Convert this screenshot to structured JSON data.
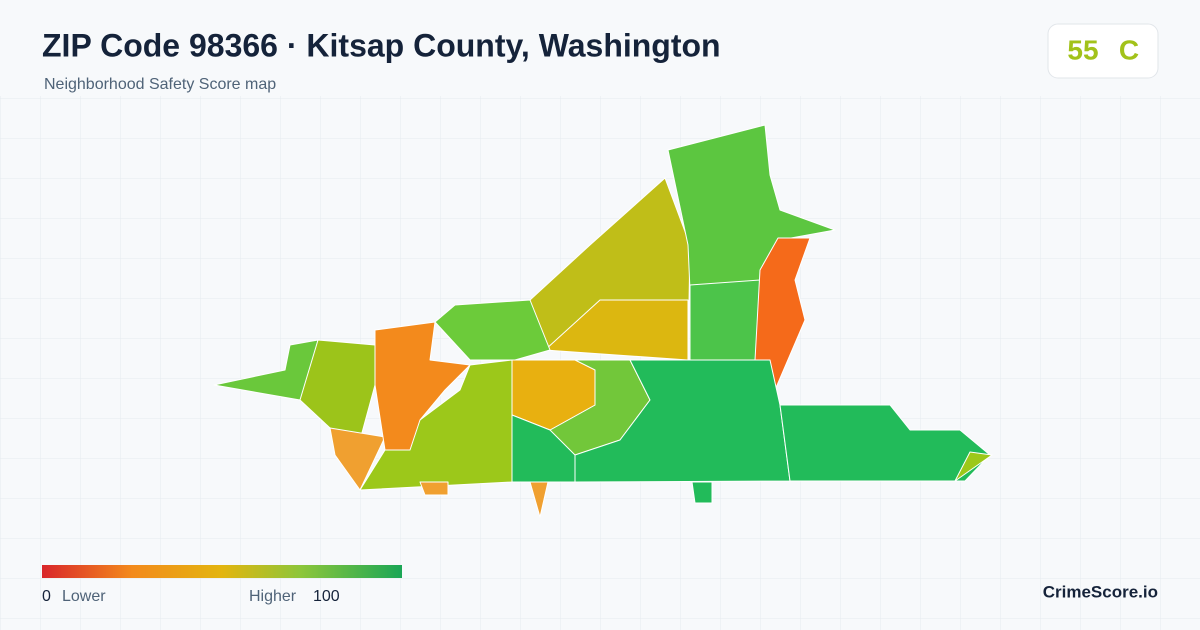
{
  "header": {
    "title": "ZIP Code 98366 · Kitsap County, Washington",
    "subtitle": "Neighborhood Safety Score map"
  },
  "score": {
    "value": "55",
    "grade": "C"
  },
  "legend": {
    "min": 0,
    "min_label": "Lower",
    "max_label": "Higher",
    "max": 100
  },
  "brand": "CrimeScore.io"
}
